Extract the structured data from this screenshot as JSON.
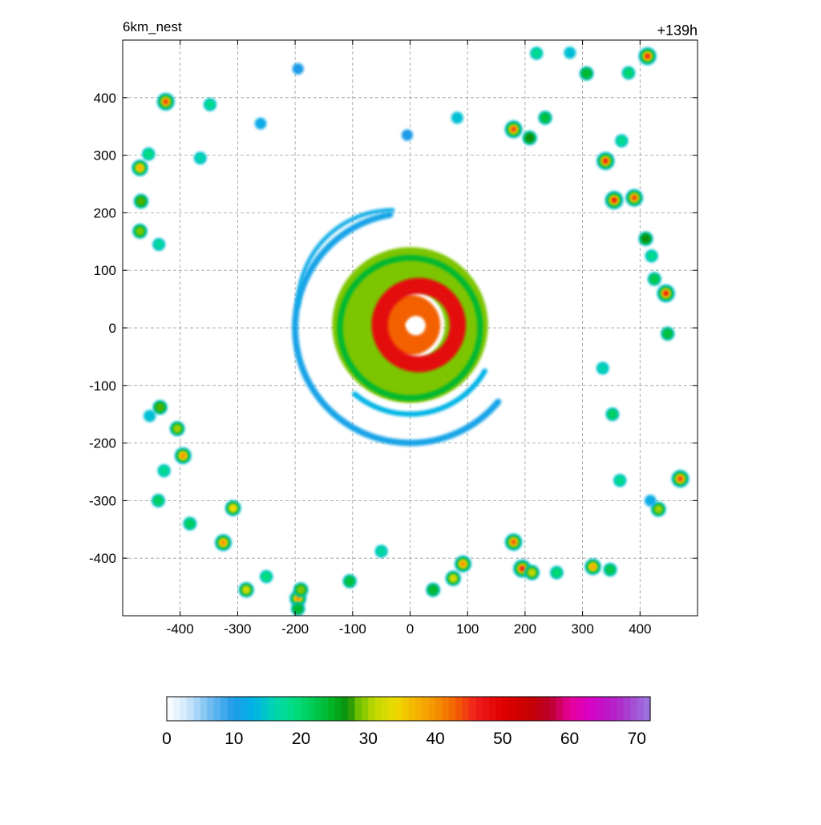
{
  "chart_data": {
    "type": "heatmap",
    "title": "6km_nest",
    "subtitle": "+139h",
    "xlabel": "",
    "ylabel": "",
    "xlim": [
      -500,
      500
    ],
    "ylim": [
      -500,
      500
    ],
    "x_ticks": [
      -400,
      -300,
      -200,
      -100,
      0,
      100,
      200,
      300,
      400
    ],
    "y_ticks": [
      400,
      300,
      200,
      100,
      0,
      -100,
      -200,
      -300,
      -400
    ],
    "grid": true,
    "colorbar": {
      "ticks": [
        0,
        10,
        20,
        30,
        40,
        50,
        60,
        70
      ],
      "range": [
        0,
        72
      ],
      "stops": [
        {
          "value": 0,
          "color": "#ffffff"
        },
        {
          "value": 3,
          "color": "#cfe8fb"
        },
        {
          "value": 7,
          "color": "#62b6f0"
        },
        {
          "value": 10,
          "color": "#1e9be8"
        },
        {
          "value": 13,
          "color": "#00b4e6"
        },
        {
          "value": 16,
          "color": "#00d4b0"
        },
        {
          "value": 19,
          "color": "#00dd80"
        },
        {
          "value": 22,
          "color": "#00c850"
        },
        {
          "value": 25,
          "color": "#00b020"
        },
        {
          "value": 27,
          "color": "#108c08"
        },
        {
          "value": 28.5,
          "color": "#6cc000"
        },
        {
          "value": 31,
          "color": "#c2d800"
        },
        {
          "value": 34,
          "color": "#ecdc00"
        },
        {
          "value": 37,
          "color": "#f5b400"
        },
        {
          "value": 40,
          "color": "#f59400"
        },
        {
          "value": 43,
          "color": "#f26000"
        },
        {
          "value": 46,
          "color": "#f01e1e"
        },
        {
          "value": 50,
          "color": "#e00000"
        },
        {
          "value": 54,
          "color": "#c80000"
        },
        {
          "value": 57,
          "color": "#b80028"
        },
        {
          "value": 60,
          "color": "#e8009a"
        },
        {
          "value": 63,
          "color": "#d800c8"
        },
        {
          "value": 67,
          "color": "#b024c8"
        },
        {
          "value": 72,
          "color": "#9a7ae0"
        }
      ]
    },
    "features": [
      {
        "kind": "ring",
        "x": 0,
        "y": 5,
        "radius": 98,
        "width": 75,
        "value": 29
      },
      {
        "kind": "ring",
        "x": 0,
        "y": 5,
        "radius": 30,
        "width": 45,
        "value": 43
      },
      {
        "kind": "ring",
        "x": 15,
        "y": 5,
        "radius": 68,
        "width": 28,
        "value": 49
      },
      {
        "kind": "ring",
        "x": 0,
        "y": 0,
        "radius": 122,
        "width": 10,
        "value": 24
      },
      {
        "kind": "arc",
        "x": 0,
        "y": 0,
        "radius": 200,
        "width": 11,
        "from": 100,
        "to": 320,
        "value": 11
      },
      {
        "kind": "arc",
        "x": -30,
        "y": 40,
        "radius": 165,
        "width": 7,
        "from": 90,
        "to": 180,
        "value": 12
      },
      {
        "kind": "arc",
        "x": 0,
        "y": 0,
        "radius": 150,
        "width": 9,
        "from": 230,
        "to": 330,
        "value": 13
      },
      {
        "kind": "cell",
        "x": -425,
        "y": 393,
        "value": 45
      },
      {
        "kind": "cell",
        "x": -348,
        "y": 388,
        "value": 18
      },
      {
        "kind": "cell",
        "x": -365,
        "y": 295,
        "value": 16
      },
      {
        "kind": "cell",
        "x": -455,
        "y": 302,
        "value": 19
      },
      {
        "kind": "cell",
        "x": -470,
        "y": 278,
        "value": 38
      },
      {
        "kind": "cell",
        "x": -468,
        "y": 220,
        "value": 28
      },
      {
        "kind": "cell",
        "x": -470,
        "y": 168,
        "value": 29
      },
      {
        "kind": "cell",
        "x": -437,
        "y": 145,
        "value": 17
      },
      {
        "kind": "cell",
        "x": -260,
        "y": 355,
        "value": 12
      },
      {
        "kind": "cell",
        "x": -195,
        "y": 450,
        "value": 10
      },
      {
        "kind": "cell",
        "x": -5,
        "y": 335,
        "value": 10
      },
      {
        "kind": "cell",
        "x": 82,
        "y": 365,
        "value": 14
      },
      {
        "kind": "cell",
        "x": 180,
        "y": 345,
        "value": 45
      },
      {
        "kind": "cell",
        "x": 208,
        "y": 330,
        "value": 27
      },
      {
        "kind": "cell",
        "x": 235,
        "y": 365,
        "value": 23
      },
      {
        "kind": "cell",
        "x": 220,
        "y": 477,
        "value": 18
      },
      {
        "kind": "cell",
        "x": 278,
        "y": 478,
        "value": 14
      },
      {
        "kind": "cell",
        "x": 307,
        "y": 442,
        "value": 25
      },
      {
        "kind": "cell",
        "x": 380,
        "y": 443,
        "value": 20
      },
      {
        "kind": "cell",
        "x": 413,
        "y": 472,
        "value": 46
      },
      {
        "kind": "cell",
        "x": 340,
        "y": 290,
        "value": 47
      },
      {
        "kind": "cell",
        "x": 368,
        "y": 325,
        "value": 18
      },
      {
        "kind": "cell",
        "x": 355,
        "y": 222,
        "value": 49
      },
      {
        "kind": "cell",
        "x": 390,
        "y": 226,
        "value": 44
      },
      {
        "kind": "cell",
        "x": 410,
        "y": 155,
        "value": 27
      },
      {
        "kind": "cell",
        "x": 420,
        "y": 125,
        "value": 18
      },
      {
        "kind": "cell",
        "x": 425,
        "y": 85,
        "value": 22
      },
      {
        "kind": "cell",
        "x": 445,
        "y": 60,
        "value": 47
      },
      {
        "kind": "cell",
        "x": 448,
        "y": -10,
        "value": 23
      },
      {
        "kind": "cell",
        "x": 335,
        "y": -70,
        "value": 16
      },
      {
        "kind": "cell",
        "x": 352,
        "y": -150,
        "value": 21
      },
      {
        "kind": "cell",
        "x": 470,
        "y": -262,
        "value": 45
      },
      {
        "kind": "cell",
        "x": 432,
        "y": -315,
        "value": 30
      },
      {
        "kind": "cell",
        "x": 418,
        "y": -300,
        "value": 12
      },
      {
        "kind": "cell",
        "x": 365,
        "y": -265,
        "value": 18
      },
      {
        "kind": "cell",
        "x": 180,
        "y": -372,
        "value": 43
      },
      {
        "kind": "cell",
        "x": 195,
        "y": -418,
        "value": 47
      },
      {
        "kind": "cell",
        "x": 212,
        "y": -425,
        "value": 31
      },
      {
        "kind": "cell",
        "x": 255,
        "y": -425,
        "value": 20
      },
      {
        "kind": "cell",
        "x": 318,
        "y": -415,
        "value": 38
      },
      {
        "kind": "cell",
        "x": 348,
        "y": -420,
        "value": 22
      },
      {
        "kind": "cell",
        "x": 92,
        "y": -410,
        "value": 40
      },
      {
        "kind": "cell",
        "x": 75,
        "y": -435,
        "value": 32
      },
      {
        "kind": "cell",
        "x": 40,
        "y": -455,
        "value": 25
      },
      {
        "kind": "cell",
        "x": -50,
        "y": -388,
        "value": 17
      },
      {
        "kind": "cell",
        "x": -105,
        "y": -440,
        "value": 23
      },
      {
        "kind": "cell",
        "x": -195,
        "y": -470,
        "value": 40
      },
      {
        "kind": "cell",
        "x": -190,
        "y": -455,
        "value": 29
      },
      {
        "kind": "cell",
        "x": -195,
        "y": -488,
        "value": 24
      },
      {
        "kind": "cell",
        "x": -285,
        "y": -455,
        "value": 32
      },
      {
        "kind": "cell",
        "x": -250,
        "y": -432,
        "value": 19
      },
      {
        "kind": "cell",
        "x": -325,
        "y": -373,
        "value": 40
      },
      {
        "kind": "cell",
        "x": -308,
        "y": -313,
        "value": 35
      },
      {
        "kind": "cell",
        "x": -383,
        "y": -340,
        "value": 21
      },
      {
        "kind": "cell",
        "x": -438,
        "y": -300,
        "value": 21
      },
      {
        "kind": "cell",
        "x": -428,
        "y": -248,
        "value": 18
      },
      {
        "kind": "cell",
        "x": -395,
        "y": -222,
        "value": 40
      },
      {
        "kind": "cell",
        "x": -405,
        "y": -175,
        "value": 30
      },
      {
        "kind": "cell",
        "x": -435,
        "y": -138,
        "value": 28
      },
      {
        "kind": "cell",
        "x": -453,
        "y": -153,
        "value": 15
      }
    ]
  }
}
